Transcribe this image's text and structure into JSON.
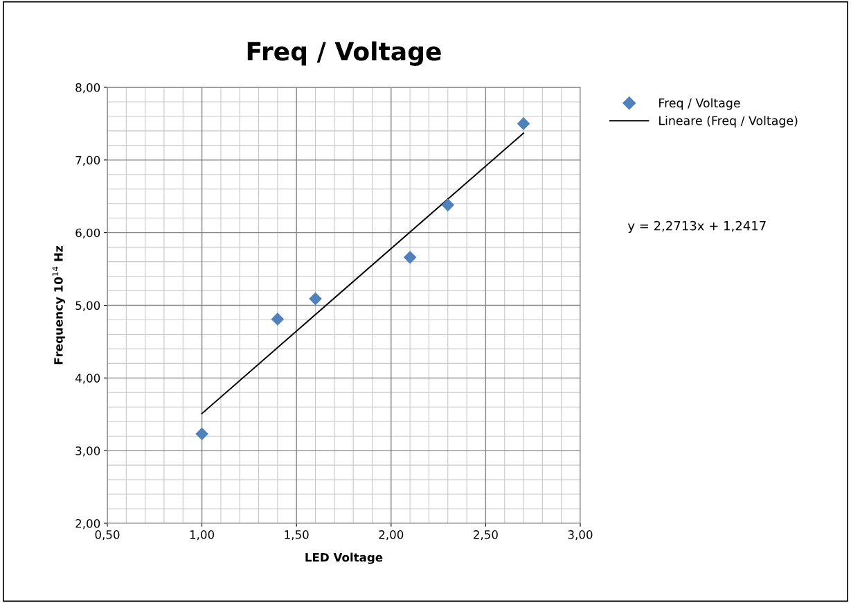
{
  "chart_data": {
    "type": "scatter",
    "title": "Freq / Voltage",
    "xlabel": "LED Voltage",
    "ylabel": "Frequency 10$^{14}$ Hz",
    "x": [
      1.0,
      1.4,
      1.6,
      2.1,
      2.3,
      2.7
    ],
    "series": [
      {
        "name": "Freq / Voltage",
        "color": "#4f81bd",
        "marker": "diamond",
        "values": [
          3.23,
          4.81,
          5.09,
          5.66,
          6.38,
          7.5
        ]
      },
      {
        "name": "Lineare (Freq / Voltage)",
        "type": "line",
        "color": "#000000",
        "marker": "none",
        "line_style": "solid",
        "x": [
          1.0,
          2.7
        ],
        "values": [
          3.51,
          7.37
        ]
      }
    ],
    "annotations": [
      "y = 2,2713x + 1,2417"
    ],
    "xlim": [
      0.5,
      3.0
    ],
    "xticks": [
      {
        "value": 0.5,
        "label": "0,50"
      },
      {
        "value": 1.0,
        "label": "1,00"
      },
      {
        "value": 1.5,
        "label": "1,50"
      },
      {
        "value": 2.0,
        "label": "2,00"
      },
      {
        "value": 2.5,
        "label": "2,50"
      },
      {
        "value": 3.0,
        "label": "3,00"
      }
    ],
    "ylim": [
      2.0,
      8.0
    ],
    "yticks": [
      {
        "value": 2,
        "label": "2,00"
      },
      {
        "value": 3,
        "label": "3,00"
      },
      {
        "value": 4,
        "label": "4,00"
      },
      {
        "value": 5,
        "label": "5,00"
      },
      {
        "value": 6,
        "label": "6,00"
      },
      {
        "value": 7,
        "label": "7,00"
      },
      {
        "value": 8,
        "label": "8,00"
      }
    ],
    "grid": true,
    "legend": "top right"
  }
}
